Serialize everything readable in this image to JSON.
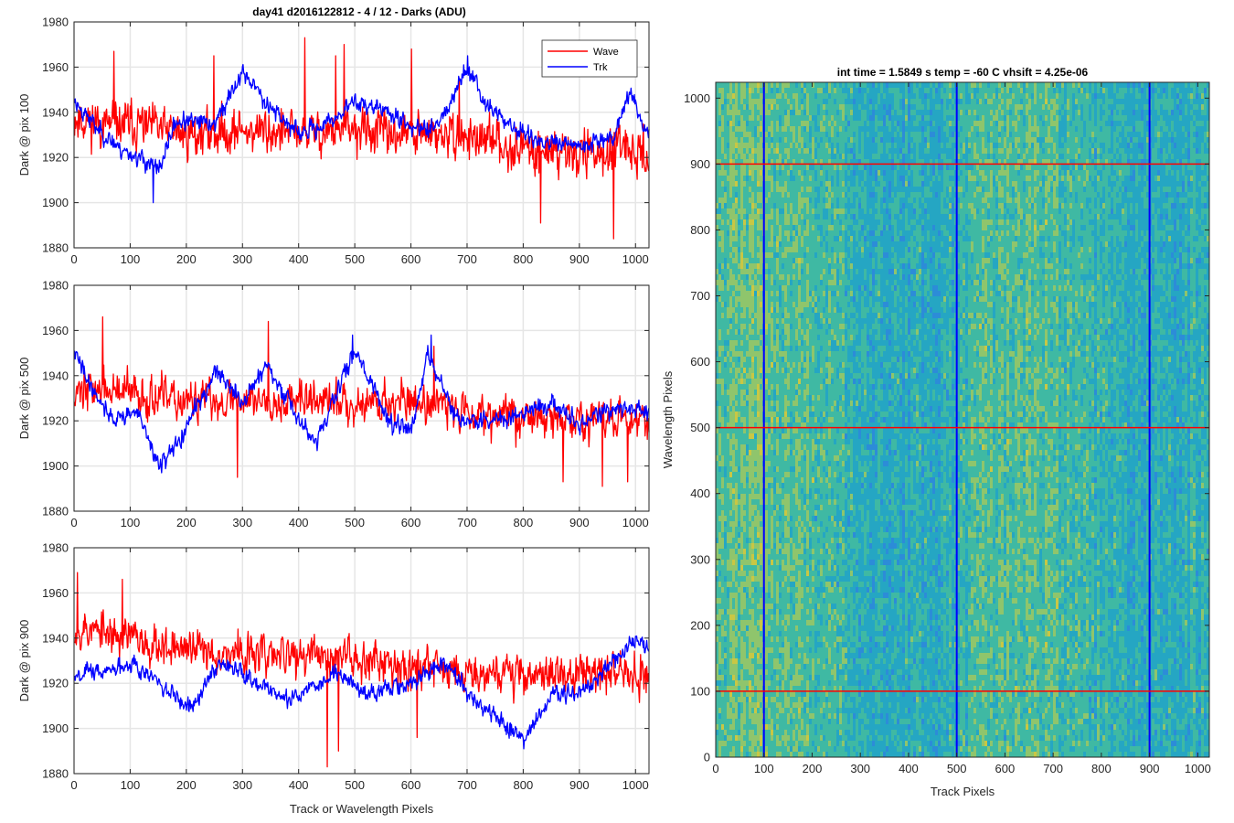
{
  "figure_title": "day41 d2016122812 - 4 / 12 - Darks (ADU)",
  "colors": {
    "wave": "#ff0000",
    "trk": "#0000ff",
    "grid": "#e6e6e6",
    "axis": "#262626"
  },
  "chart_data": [
    {
      "type": "line",
      "ylabel": "Dark @ pix 100",
      "xlabel": "",
      "xlim": [
        0,
        1024
      ],
      "ylim": [
        1880,
        1980
      ],
      "xticks": [
        0,
        100,
        200,
        300,
        400,
        500,
        600,
        700,
        800,
        900,
        1000
      ],
      "yticks": [
        1880,
        1900,
        1920,
        1940,
        1960,
        1980
      ],
      "grid": true,
      "legend": {
        "placement": "top-right",
        "entries": [
          "Wave",
          "Trk"
        ]
      },
      "series": [
        {
          "name": "Wave",
          "color": "#ff0000",
          "mean": 1932,
          "noise": 10,
          "seed": 11,
          "anchors": [
            [
              0,
              1938
            ],
            [
              60,
              1934
            ],
            [
              100,
              1935
            ],
            [
              200,
              1930
            ],
            [
              300,
              1932
            ],
            [
              400,
              1931
            ],
            [
              500,
              1932
            ],
            [
              600,
              1930
            ],
            [
              700,
              1929
            ],
            [
              800,
              1924
            ],
            [
              900,
              1922
            ],
            [
              1024,
              1922
            ]
          ],
          "spikes": [
            [
              70,
              1967
            ],
            [
              248,
              1965
            ],
            [
              410,
              1973
            ],
            [
              465,
              1965
            ],
            [
              480,
              1970
            ],
            [
              600,
              1968
            ],
            [
              685,
              1955
            ],
            [
              960,
              1884
            ],
            [
              830,
              1891
            ]
          ]
        },
        {
          "name": "Trk",
          "color": "#0000ff",
          "mean": 1932,
          "noise": 4,
          "seed": 23,
          "anchors": [
            [
              0,
              1945
            ],
            [
              40,
              1933
            ],
            [
              80,
              1924
            ],
            [
              130,
              1918
            ],
            [
              150,
              1914
            ],
            [
              180,
              1936
            ],
            [
              250,
              1935
            ],
            [
              300,
              1958
            ],
            [
              340,
              1945
            ],
            [
              400,
              1930
            ],
            [
              450,
              1935
            ],
            [
              500,
              1945
            ],
            [
              560,
              1940
            ],
            [
              610,
              1932
            ],
            [
              650,
              1936
            ],
            [
              700,
              1960
            ],
            [
              730,
              1945
            ],
            [
              780,
              1933
            ],
            [
              840,
              1926
            ],
            [
              900,
              1925
            ],
            [
              960,
              1930
            ],
            [
              990,
              1950
            ],
            [
              1010,
              1935
            ],
            [
              1024,
              1930
            ]
          ],
          "spikes": [
            [
              140,
              1900
            ],
            [
              700,
              1965
            ]
          ]
        }
      ]
    },
    {
      "type": "line",
      "ylabel": "Dark @ pix 500",
      "xlabel": "",
      "xlim": [
        0,
        1024
      ],
      "ylim": [
        1880,
        1980
      ],
      "xticks": [
        0,
        100,
        200,
        300,
        400,
        500,
        600,
        700,
        800,
        900,
        1000
      ],
      "yticks": [
        1880,
        1900,
        1920,
        1940,
        1960,
        1980
      ],
      "grid": true,
      "series": [
        {
          "name": "Wave",
          "color": "#ff0000",
          "mean": 1930,
          "noise": 9,
          "seed": 37,
          "anchors": [
            [
              0,
              1935
            ],
            [
              100,
              1932
            ],
            [
              200,
              1928
            ],
            [
              300,
              1930
            ],
            [
              400,
              1929
            ],
            [
              500,
              1928
            ],
            [
              600,
              1929
            ],
            [
              700,
              1925
            ],
            [
              800,
              1922
            ],
            [
              900,
              1920
            ],
            [
              1024,
              1922
            ]
          ],
          "spikes": [
            [
              50,
              1966
            ],
            [
              345,
              1964
            ],
            [
              290,
              1895
            ],
            [
              640,
              1953
            ],
            [
              870,
              1893
            ],
            [
              940,
              1891
            ],
            [
              985,
              1893
            ]
          ]
        },
        {
          "name": "Trk",
          "color": "#0000ff",
          "mean": 1925,
          "noise": 4,
          "seed": 41,
          "anchors": [
            [
              0,
              1950
            ],
            [
              30,
              1935
            ],
            [
              70,
              1920
            ],
            [
              110,
              1925
            ],
            [
              150,
              1900
            ],
            [
              180,
              1908
            ],
            [
              250,
              1942
            ],
            [
              300,
              1928
            ],
            [
              340,
              1945
            ],
            [
              400,
              1920
            ],
            [
              430,
              1910
            ],
            [
              500,
              1952
            ],
            [
              560,
              1920
            ],
            [
              600,
              1915
            ],
            [
              630,
              1950
            ],
            [
              680,
              1920
            ],
            [
              750,
              1920
            ],
            [
              850,
              1928
            ],
            [
              900,
              1918
            ],
            [
              950,
              1925
            ],
            [
              1024,
              1925
            ]
          ],
          "spikes": [
            [
              155,
              1897
            ],
            [
              495,
              1958
            ],
            [
              635,
              1958
            ]
          ]
        }
      ]
    },
    {
      "type": "line",
      "ylabel": "Dark @ pix 900",
      "xlabel": "Track or Wavelength Pixels",
      "xlim": [
        0,
        1024
      ],
      "ylim": [
        1880,
        1980
      ],
      "xticks": [
        0,
        100,
        200,
        300,
        400,
        500,
        600,
        700,
        800,
        900,
        1000
      ],
      "yticks": [
        1880,
        1900,
        1920,
        1940,
        1960,
        1980
      ],
      "grid": true,
      "series": [
        {
          "name": "Wave",
          "color": "#ff0000",
          "mean": 1934,
          "noise": 9,
          "seed": 53,
          "anchors": [
            [
              0,
              1945
            ],
            [
              100,
              1940
            ],
            [
              200,
              1935
            ],
            [
              300,
              1933
            ],
            [
              400,
              1932
            ],
            [
              500,
              1932
            ],
            [
              600,
              1928
            ],
            [
              700,
              1926
            ],
            [
              800,
              1924
            ],
            [
              900,
              1924
            ],
            [
              1024,
              1925
            ]
          ],
          "spikes": [
            [
              5,
              1969
            ],
            [
              85,
              1966
            ],
            [
              450,
              1883
            ],
            [
              470,
              1890
            ],
            [
              610,
              1896
            ]
          ]
        },
        {
          "name": "Trk",
          "color": "#0000ff",
          "mean": 1920,
          "noise": 4,
          "seed": 67,
          "anchors": [
            [
              0,
              1925
            ],
            [
              60,
              1925
            ],
            [
              100,
              1930
            ],
            [
              150,
              1920
            ],
            [
              200,
              1908
            ],
            [
              260,
              1930
            ],
            [
              300,
              1925
            ],
            [
              380,
              1912
            ],
            [
              420,
              1918
            ],
            [
              470,
              1925
            ],
            [
              520,
              1915
            ],
            [
              600,
              1920
            ],
            [
              660,
              1930
            ],
            [
              700,
              1915
            ],
            [
              800,
              1895
            ],
            [
              850,
              1915
            ],
            [
              900,
              1915
            ],
            [
              950,
              1928
            ],
            [
              1000,
              1940
            ],
            [
              1024,
              1935
            ]
          ],
          "spikes": [
            [
              800,
              1891
            ]
          ]
        }
      ]
    },
    {
      "type": "heatmap",
      "title": "int time = 1.5849 s    temp = -60 C    vhsift = 4.25e-06",
      "xlabel": "Track Pixels",
      "ylabel": "Wavelength Pixels",
      "xlim": [
        0,
        1024
      ],
      "ylim": [
        0,
        1024
      ],
      "xticks": [
        0,
        100,
        200,
        300,
        400,
        500,
        600,
        700,
        800,
        900,
        1000
      ],
      "yticks": [
        0,
        100,
        200,
        300,
        400,
        500,
        600,
        700,
        800,
        900,
        1000
      ],
      "colormap": [
        "#2c8cd8",
        "#25a6c3",
        "#3fb9a3",
        "#8fc56c",
        "#c9c744"
      ],
      "vertical_markers": {
        "color": "#0000ff",
        "x": [
          100,
          500,
          900
        ]
      },
      "horizontal_markers": {
        "color": "#ff0000",
        "y": [
          100,
          500,
          900
        ]
      }
    }
  ]
}
